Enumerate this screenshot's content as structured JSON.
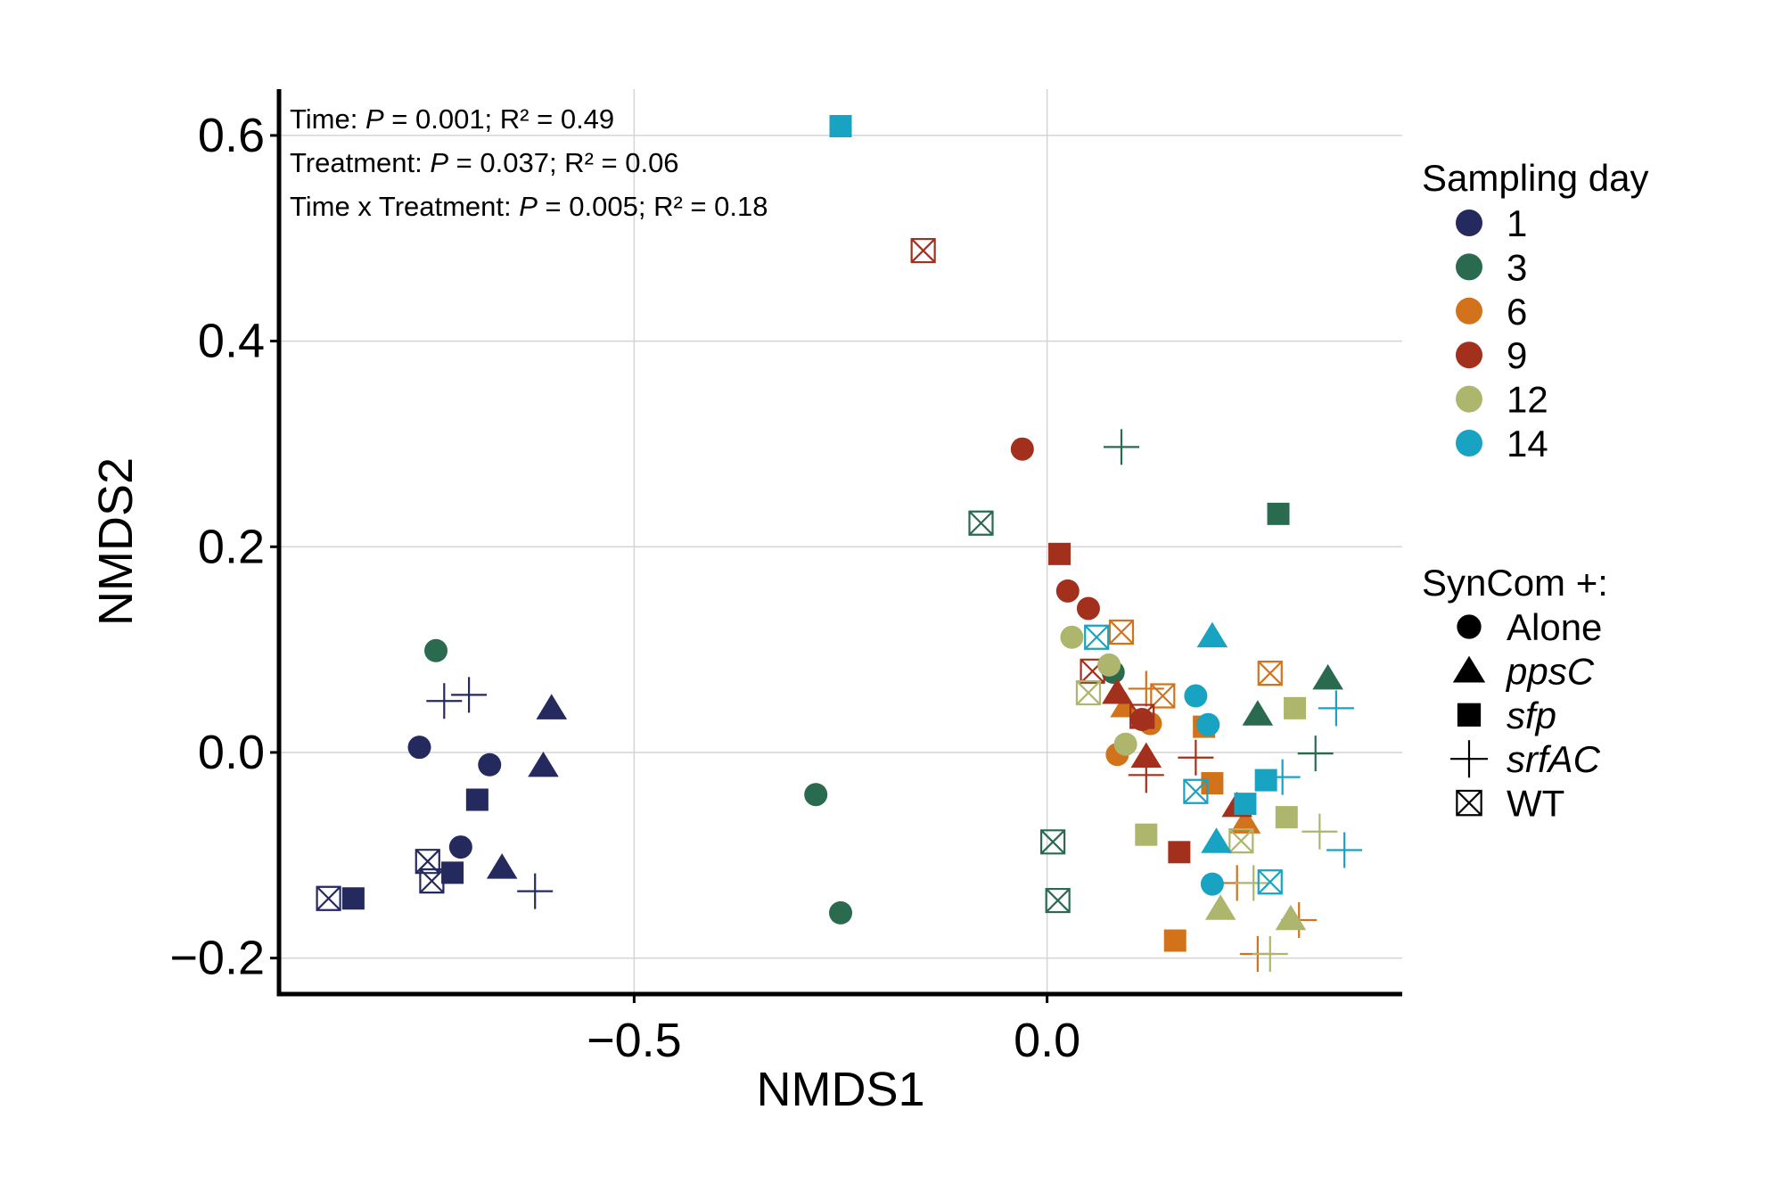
{
  "chart_data": {
    "type": "scatter",
    "xlabel": "NMDS1",
    "ylabel": "NMDS2",
    "xlim": [
      -0.93,
      0.43
    ],
    "ylim": [
      -0.235,
      0.645
    ],
    "x_ticks": [
      -0.5,
      0.0
    ],
    "x_tick_labels": [
      "−0.5",
      "0.0"
    ],
    "y_ticks": [
      -0.2,
      0.0,
      0.2,
      0.4,
      0.6
    ],
    "y_tick_labels": [
      "−0.2",
      "0.0",
      "0.2",
      "0.4",
      "0.6"
    ],
    "grid": true,
    "legend_placement": "right",
    "annotations": [
      {
        "prefix": "Time: ",
        "p": "P",
        "rest": " = 0.001; R² = 0.49"
      },
      {
        "prefix": "Treatment: ",
        "p": "P",
        "rest": " = 0.037; R² = 0.06"
      },
      {
        "prefix": "Time x Treatment: ",
        "p": "P",
        "rest": " = 0.005; R² = 0.18"
      }
    ],
    "color_legend": {
      "title": "Sampling day",
      "items": [
        {
          "label": "1",
          "color": "#252A5E"
        },
        {
          "label": "3",
          "color": "#2A6B50"
        },
        {
          "label": "6",
          "color": "#D2731B"
        },
        {
          "label": "9",
          "color": "#A3301C"
        },
        {
          "label": "12",
          "color": "#AEB56D"
        },
        {
          "label": "14",
          "color": "#17A3C1"
        }
      ]
    },
    "shape_legend": {
      "title": "SynCom +:",
      "items": [
        {
          "label": "Alone",
          "shape": "circle",
          "italic": false
        },
        {
          "label": "ppsC",
          "shape": "triangle",
          "italic": true
        },
        {
          "label": "sfp",
          "shape": "square",
          "italic": true
        },
        {
          "label": "srfAC",
          "shape": "plus",
          "italic": true
        },
        {
          "label": "WT",
          "shape": "boxx",
          "italic": false
        }
      ]
    },
    "points": [
      {
        "day": "1",
        "shape": "circle",
        "x": -0.76,
        "y": 0.005
      },
      {
        "day": "1",
        "shape": "circle",
        "x": -0.675,
        "y": -0.012
      },
      {
        "day": "1",
        "shape": "circle",
        "x": -0.71,
        "y": -0.092
      },
      {
        "day": "1",
        "shape": "triangle",
        "x": -0.6,
        "y": 0.043
      },
      {
        "day": "1",
        "shape": "triangle",
        "x": -0.61,
        "y": -0.013
      },
      {
        "day": "1",
        "shape": "triangle",
        "x": -0.66,
        "y": -0.112
      },
      {
        "day": "1",
        "shape": "square",
        "x": -0.69,
        "y": -0.046
      },
      {
        "day": "1",
        "shape": "square",
        "x": -0.72,
        "y": -0.117
      },
      {
        "day": "1",
        "shape": "square",
        "x": -0.84,
        "y": -0.142
      },
      {
        "day": "1",
        "shape": "plus",
        "x": -0.73,
        "y": 0.05
      },
      {
        "day": "1",
        "shape": "plus",
        "x": -0.7,
        "y": 0.056
      },
      {
        "day": "1",
        "shape": "plus",
        "x": -0.62,
        "y": -0.135
      },
      {
        "day": "1",
        "shape": "boxx",
        "x": -0.75,
        "y": -0.106
      },
      {
        "day": "1",
        "shape": "boxx",
        "x": -0.745,
        "y": -0.125
      },
      {
        "day": "1",
        "shape": "boxx",
        "x": -0.87,
        "y": -0.142
      },
      {
        "day": "3",
        "shape": "circle",
        "x": -0.74,
        "y": 0.099
      },
      {
        "day": "3",
        "shape": "circle",
        "x": -0.28,
        "y": -0.041
      },
      {
        "day": "3",
        "shape": "circle",
        "x": -0.25,
        "y": -0.156
      },
      {
        "day": "3",
        "shape": "circle",
        "x": 0.08,
        "y": 0.078
      },
      {
        "day": "3",
        "shape": "square",
        "x": 0.28,
        "y": 0.232
      },
      {
        "day": "3",
        "shape": "triangle",
        "x": 0.34,
        "y": 0.072
      },
      {
        "day": "3",
        "shape": "triangle",
        "x": 0.255,
        "y": 0.037
      },
      {
        "day": "3",
        "shape": "plus",
        "x": 0.09,
        "y": 0.297
      },
      {
        "day": "3",
        "shape": "plus",
        "x": 0.325,
        "y": -0.001
      },
      {
        "day": "3",
        "shape": "boxx",
        "x": -0.08,
        "y": 0.223
      },
      {
        "day": "3",
        "shape": "boxx",
        "x": 0.007,
        "y": -0.087
      },
      {
        "day": "3",
        "shape": "boxx",
        "x": 0.013,
        "y": -0.144
      },
      {
        "day": "6",
        "shape": "circle",
        "x": 0.085,
        "y": -0.002
      },
      {
        "day": "6",
        "shape": "circle",
        "x": 0.125,
        "y": 0.028
      },
      {
        "day": "6",
        "shape": "triangle",
        "x": 0.095,
        "y": 0.045
      },
      {
        "day": "6",
        "shape": "triangle",
        "x": 0.24,
        "y": -0.068
      },
      {
        "day": "6",
        "shape": "square",
        "x": 0.19,
        "y": 0.025
      },
      {
        "day": "6",
        "shape": "square",
        "x": 0.2,
        "y": -0.03
      },
      {
        "day": "6",
        "shape": "square",
        "x": 0.155,
        "y": -0.183
      },
      {
        "day": "6",
        "shape": "plus",
        "x": 0.12,
        "y": 0.062
      },
      {
        "day": "6",
        "shape": "plus",
        "x": 0.23,
        "y": -0.127
      },
      {
        "day": "6",
        "shape": "plus",
        "x": 0.305,
        "y": -0.163
      },
      {
        "day": "6",
        "shape": "plus",
        "x": 0.255,
        "y": -0.196
      },
      {
        "day": "6",
        "shape": "boxx",
        "x": 0.09,
        "y": 0.117
      },
      {
        "day": "6",
        "shape": "boxx",
        "x": 0.27,
        "y": 0.077
      },
      {
        "day": "6",
        "shape": "boxx",
        "x": 0.14,
        "y": 0.055
      },
      {
        "day": "9",
        "shape": "circle",
        "x": -0.03,
        "y": 0.295
      },
      {
        "day": "9",
        "shape": "circle",
        "x": 0.025,
        "y": 0.157
      },
      {
        "day": "9",
        "shape": "circle",
        "x": 0.05,
        "y": 0.14
      },
      {
        "day": "9",
        "shape": "circle",
        "x": 0.115,
        "y": 0.032
      },
      {
        "day": "9",
        "shape": "triangle",
        "x": 0.085,
        "y": 0.058
      },
      {
        "day": "9",
        "shape": "triangle",
        "x": 0.12,
        "y": -0.004
      },
      {
        "day": "9",
        "shape": "triangle",
        "x": 0.23,
        "y": -0.052
      },
      {
        "day": "9",
        "shape": "square",
        "x": 0.015,
        "y": 0.193
      },
      {
        "day": "9",
        "shape": "square",
        "x": 0.16,
        "y": -0.097
      },
      {
        "day": "9",
        "shape": "plus",
        "x": 0.12,
        "y": -0.022
      },
      {
        "day": "9",
        "shape": "plus",
        "x": 0.18,
        "y": -0.005
      },
      {
        "day": "9",
        "shape": "boxx",
        "x": -0.15,
        "y": 0.488
      },
      {
        "day": "9",
        "shape": "boxx",
        "x": 0.055,
        "y": 0.079
      },
      {
        "day": "9",
        "shape": "boxx",
        "x": 0.115,
        "y": 0.035
      },
      {
        "day": "12",
        "shape": "circle",
        "x": 0.03,
        "y": 0.112
      },
      {
        "day": "12",
        "shape": "circle",
        "x": 0.075,
        "y": 0.085
      },
      {
        "day": "12",
        "shape": "circle",
        "x": 0.095,
        "y": 0.008
      },
      {
        "day": "12",
        "shape": "triangle",
        "x": 0.21,
        "y": -0.152
      },
      {
        "day": "12",
        "shape": "triangle",
        "x": 0.295,
        "y": -0.162
      },
      {
        "day": "12",
        "shape": "square",
        "x": 0.3,
        "y": 0.043
      },
      {
        "day": "12",
        "shape": "square",
        "x": 0.12,
        "y": -0.08
      },
      {
        "day": "12",
        "shape": "square",
        "x": 0.29,
        "y": -0.063
      },
      {
        "day": "12",
        "shape": "plus",
        "x": 0.33,
        "y": -0.077
      },
      {
        "day": "12",
        "shape": "plus",
        "x": 0.25,
        "y": -0.127
      },
      {
        "day": "12",
        "shape": "plus",
        "x": 0.27,
        "y": -0.196
      },
      {
        "day": "12",
        "shape": "boxx",
        "x": 0.05,
        "y": 0.058
      },
      {
        "day": "12",
        "shape": "boxx",
        "x": 0.235,
        "y": -0.086
      },
      {
        "day": "14",
        "shape": "square",
        "x": -0.25,
        "y": 0.609
      },
      {
        "day": "14",
        "shape": "circle",
        "x": 0.18,
        "y": 0.055
      },
      {
        "day": "14",
        "shape": "circle",
        "x": 0.195,
        "y": 0.027
      },
      {
        "day": "14",
        "shape": "circle",
        "x": 0.2,
        "y": -0.128
      },
      {
        "day": "14",
        "shape": "triangle",
        "x": 0.2,
        "y": 0.113
      },
      {
        "day": "14",
        "shape": "triangle",
        "x": 0.205,
        "y": -0.087
      },
      {
        "day": "14",
        "shape": "square",
        "x": 0.24,
        "y": -0.05
      },
      {
        "day": "14",
        "shape": "square",
        "x": 0.265,
        "y": -0.027
      },
      {
        "day": "14",
        "shape": "plus",
        "x": 0.35,
        "y": 0.043
      },
      {
        "day": "14",
        "shape": "plus",
        "x": 0.36,
        "y": -0.095
      },
      {
        "day": "14",
        "shape": "plus",
        "x": 0.285,
        "y": -0.024
      },
      {
        "day": "14",
        "shape": "boxx",
        "x": 0.06,
        "y": 0.112
      },
      {
        "day": "14",
        "shape": "boxx",
        "x": 0.18,
        "y": -0.038
      },
      {
        "day": "14",
        "shape": "boxx",
        "x": 0.27,
        "y": -0.126
      }
    ]
  }
}
